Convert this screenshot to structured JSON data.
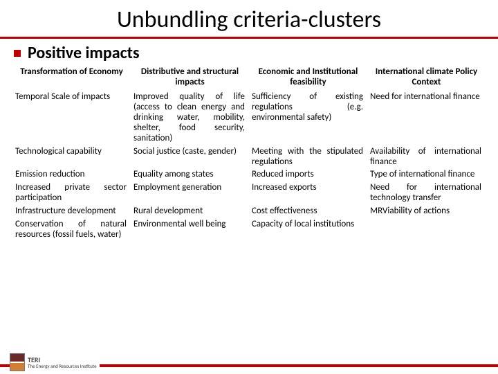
{
  "slide": {
    "title": "Unbundling criteria-clusters",
    "subtitle": "Positive impacts"
  },
  "table": {
    "headers": [
      "Transformation of Economy",
      "Distributive and structural impacts",
      "Economic and Institutional feasibility",
      "International climate Policy Context"
    ],
    "rows": [
      [
        "Temporal Scale of impacts",
        "Improved quality of life (access to clean energy and drinking water, mobility, shelter, food security, sanitation)",
        "Sufficiency of existing regulations (e.g. environmental safety)",
        "Need for international finance"
      ],
      [
        "Technological capability",
        "Social justice (caste, gender)",
        "Meeting with the stipulated regulations",
        "Availability of international finance"
      ],
      [
        "Emission reduction",
        "Equality among states",
        "Reduced imports",
        "Type of international finance"
      ],
      [
        "Increased private sector participation",
        "Employment generation",
        "Increased exports",
        "Need for international technology transfer"
      ],
      [
        "Infrastructure development",
        "Rural development",
        "Cost effectiveness",
        "MRViability of actions"
      ],
      [
        "Conservation of natural resources (fossil fuels, water)",
        "Environmental well being",
        "Capacity of local institutions",
        ""
      ]
    ]
  },
  "logo": {
    "name": "TERI",
    "tagline": "The Energy and Resources Institute"
  },
  "colors": {
    "accent": "#c00000",
    "text": "#000000",
    "background": "#ffffff"
  }
}
